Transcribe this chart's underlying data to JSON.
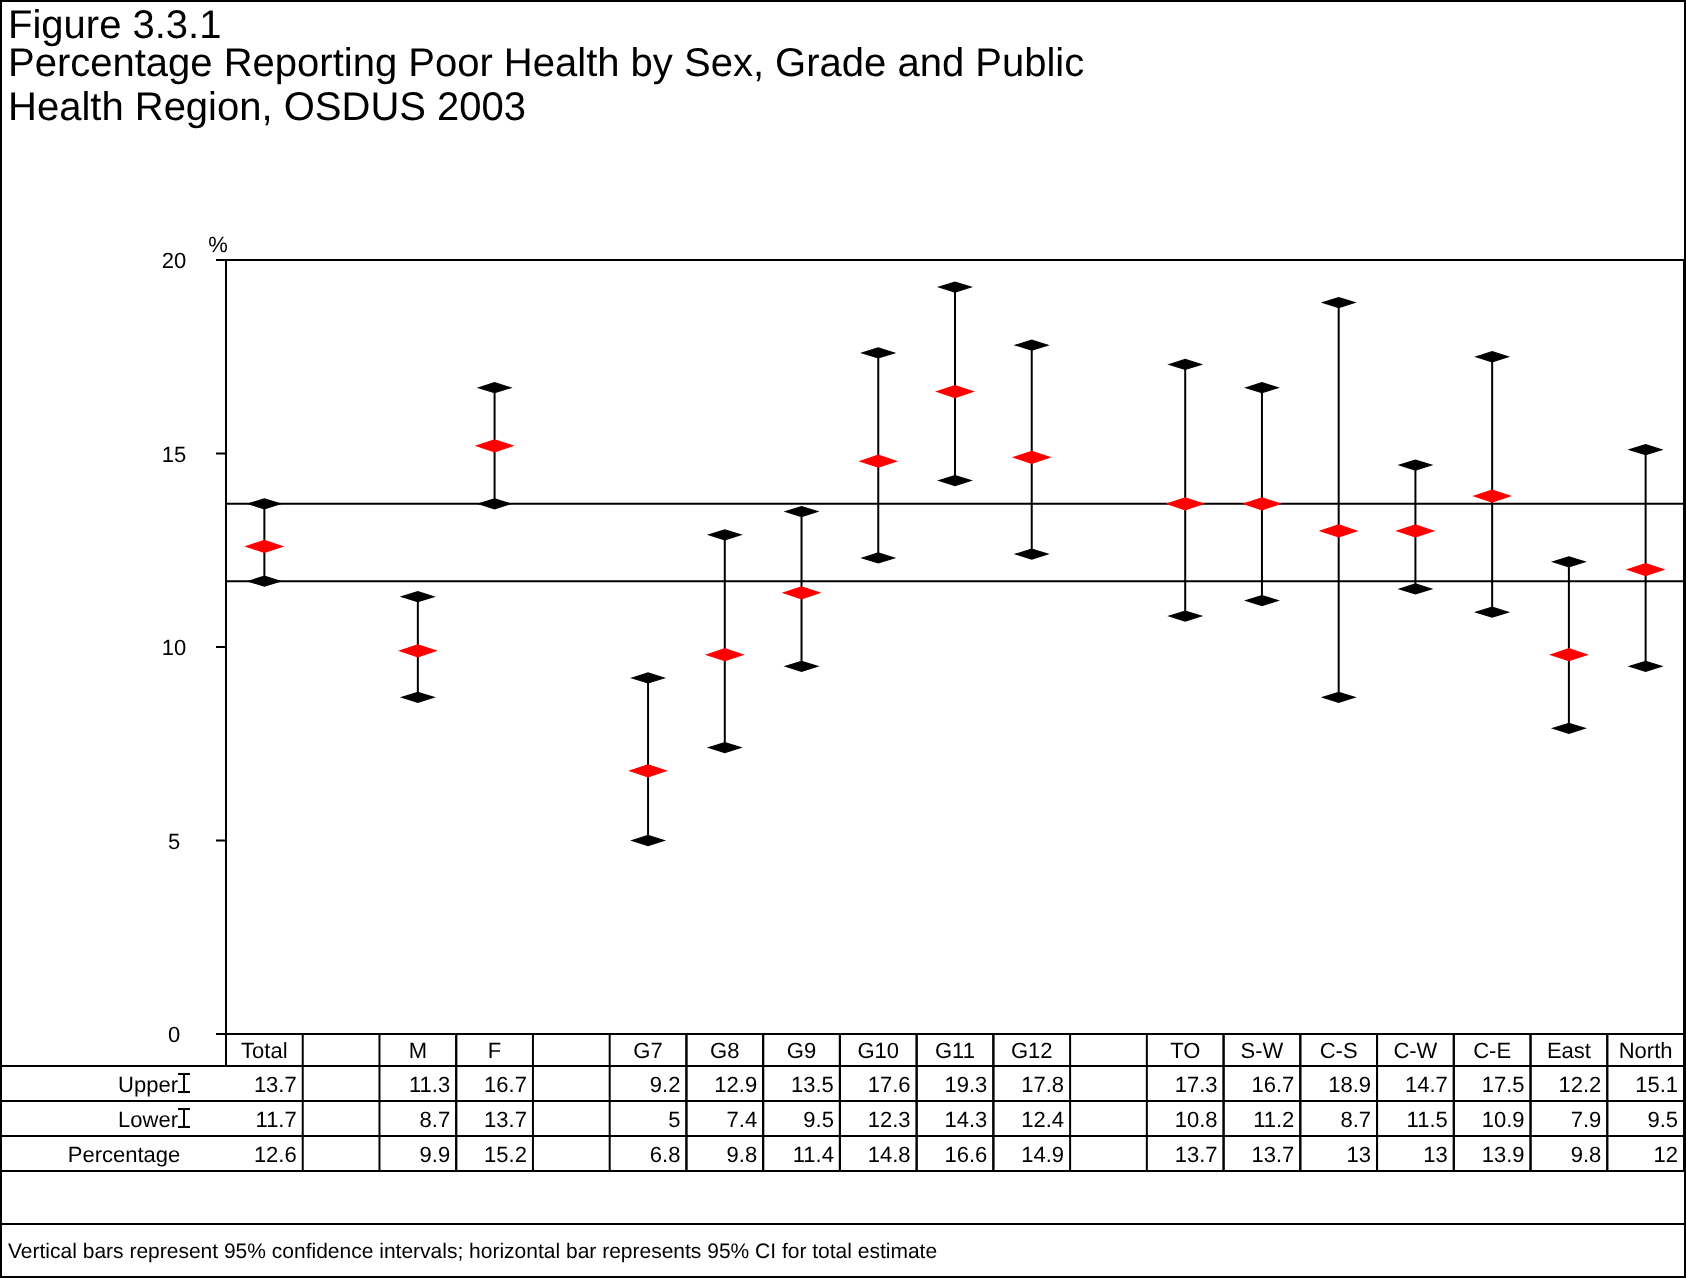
{
  "chart_data": {
    "type": "scatter",
    "title": "Figure 3.3.1",
    "subtitle": "Percentage Reporting Poor Health by Sex, Grade and Public Health Region, OSDUS 2003",
    "ylabel": "%",
    "categories": [
      "Total",
      null,
      "M",
      "F",
      null,
      "G7",
      "G8",
      "G9",
      "G10",
      "G11",
      "G12",
      null,
      "TO",
      "S-W",
      "C-S",
      "C-W",
      "C-E",
      "East",
      "North"
    ],
    "series": [
      {
        "name": "Upper",
        "color": "#000000",
        "values": [
          13.7,
          null,
          11.3,
          16.7,
          null,
          9.2,
          12.9,
          13.5,
          17.6,
          19.3,
          17.8,
          null,
          17.3,
          16.7,
          18.9,
          14.7,
          17.5,
          12.2,
          15.1
        ]
      },
      {
        "name": "Lower",
        "color": "#000000",
        "values": [
          11.7,
          null,
          8.7,
          13.7,
          null,
          5,
          7.4,
          9.5,
          12.3,
          14.3,
          12.4,
          null,
          10.8,
          11.2,
          8.7,
          11.5,
          10.9,
          7.9,
          9.5
        ]
      },
      {
        "color": "#ff0000",
        "values": [
          12.6,
          null,
          9.9,
          15.2,
          null,
          6.8,
          9.8,
          11.4,
          14.8,
          16.6,
          14.9,
          null,
          13.7,
          13.7,
          13,
          13,
          13.9,
          9.8,
          12
        ]
      }
    ],
    "ylim": [
      0,
      20
    ],
    "yticks": [
      0,
      5,
      10,
      15,
      20
    ],
    "ref_lines": [
      {
        "axis": "y",
        "value": 11.7,
        "color": "#000000"
      },
      {
        "axis": "y",
        "value": 13.7,
        "color": "#000000"
      }
    ],
    "data_labels": true,
    "legend": "bottom left",
    "annotations": [
      "Percentage",
      "Vertical bars represent 95% confidence intervals; horizontal bar represents 95% CI for total estimate"
    ]
  }
}
